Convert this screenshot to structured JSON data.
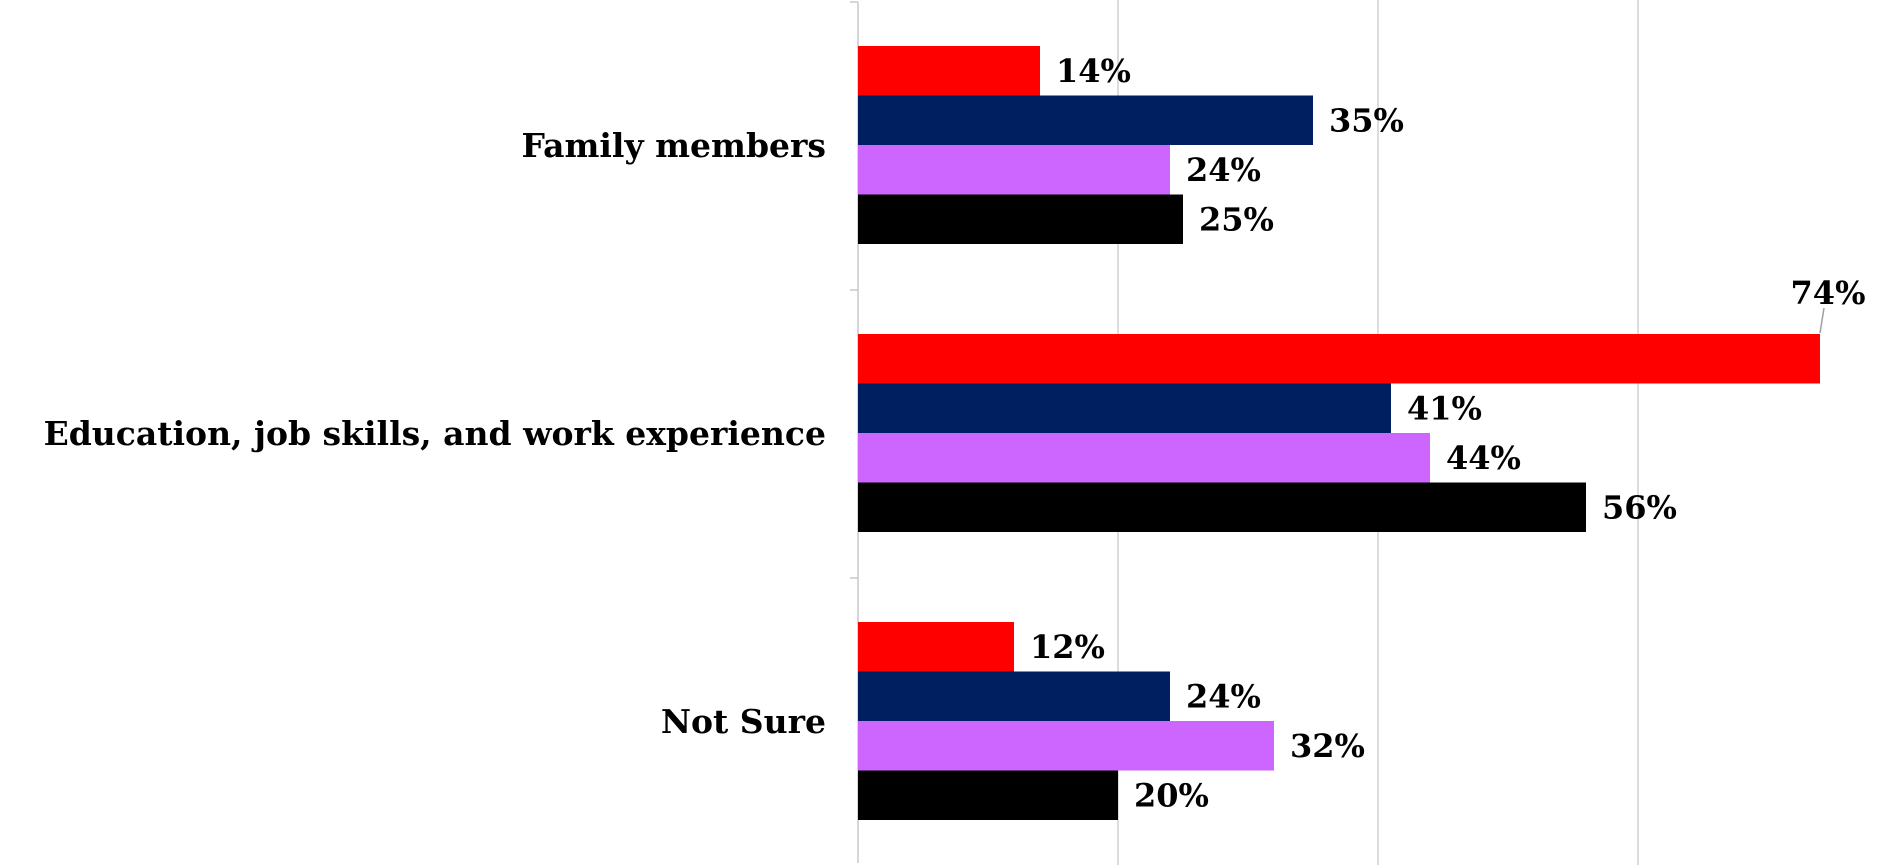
{
  "chart_data": {
    "type": "bar",
    "orientation": "horizontal",
    "categories": [
      "Family members",
      "Education, job skills, and work experience",
      "Not Sure"
    ],
    "series": [
      {
        "color": "#ff0000",
        "values": [
          14,
          74,
          12
        ]
      },
      {
        "color": "#001f60",
        "values": [
          35,
          41,
          24
        ]
      },
      {
        "color": "#cc66ff",
        "values": [
          24,
          44,
          32
        ]
      },
      {
        "color": "#000000",
        "values": [
          25,
          56,
          20
        ]
      }
    ],
    "value_suffix": "%",
    "xlim": [
      0,
      80
    ],
    "grid": true,
    "legend": "none"
  }
}
